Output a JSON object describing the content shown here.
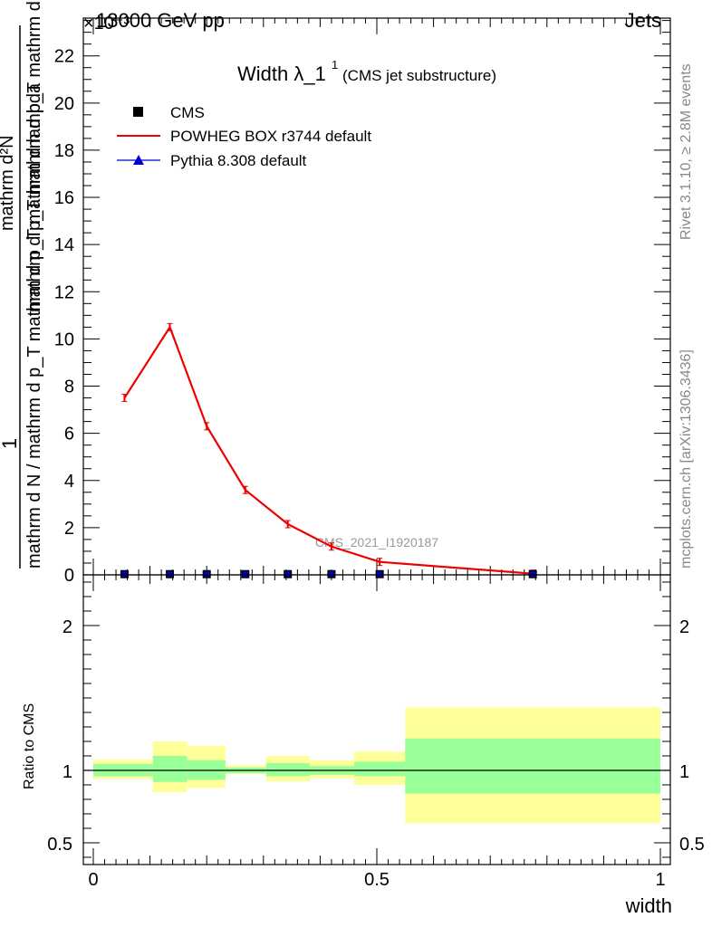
{
  "header": {
    "left": "13000 GeV pp",
    "right": "Jets",
    "exponent": "×10⁻³"
  },
  "side_labels": {
    "rivet": "Rivet 3.1.10, ≥ 2.8M events",
    "mcplots": "mcplots.cern.ch [arXiv:1306.3436]"
  },
  "chart_data": [
    {
      "type": "line",
      "title": "Width λ_1",
      "title_superscript": "1",
      "subtitle": "(CMS jet substructure)",
      "watermark": "CMS_2021_I1920187",
      "ylabel_numerator": "1",
      "ylabel_top": "mathrm d²N",
      "ylabel_middle": "mathrm d p_T mathrm d p_T mathrm d lambda",
      "ylabel_bottom": "mathrm d N / mathrm d p_T mathrm d p_T mathrm d lambda",
      "y_scale_note": "×10⁻³",
      "xlim": [
        0,
        1
      ],
      "ylim": [
        0,
        23.6
      ],
      "yticks": [
        0,
        2,
        4,
        6,
        8,
        10,
        12,
        14,
        16,
        18,
        20,
        22
      ],
      "ytick_labels": [
        "0",
        "2",
        "4",
        "6",
        "8",
        "10",
        "12",
        "14",
        "16",
        "18",
        "20",
        "22"
      ],
      "legend": {
        "placement": "top-left",
        "entries": [
          {
            "label": "CMS",
            "marker": "square",
            "color": "#000000"
          },
          {
            "label": "POWHEG BOX r3744 default",
            "marker": "line",
            "color": "#ee0000"
          },
          {
            "label": "Pythia 8.308 default",
            "marker": "triangle",
            "color": "#0000cc"
          }
        ]
      },
      "series": [
        {
          "name": "CMS",
          "x": [
            0.055,
            0.135,
            0.2,
            0.268,
            0.343,
            0.42,
            0.505,
            0.775
          ],
          "y": [
            0.03,
            0.03,
            0.03,
            0.03,
            0.03,
            0.03,
            0.03,
            0.03
          ]
        },
        {
          "name": "POWHEG BOX r3744 default",
          "x": [
            0.055,
            0.135,
            0.2,
            0.268,
            0.343,
            0.42,
            0.505,
            0.775
          ],
          "y": [
            7.5,
            10.5,
            6.3,
            3.6,
            2.15,
            1.2,
            0.55,
            0.05
          ]
        }
      ]
    },
    {
      "type": "area",
      "ylabel": "Ratio to CMS",
      "xlabel": "width",
      "xlim": [
        0,
        1
      ],
      "ylim": [
        0.35,
        2.35
      ],
      "yticks": [
        0.5,
        1,
        2
      ],
      "ytick_labels": [
        "0.5",
        "1",
        "2"
      ],
      "xticks": [
        0,
        0.5,
        1
      ],
      "xtick_labels": [
        "0",
        "0.5",
        "1"
      ],
      "reference_line": 1,
      "bands": [
        {
          "x0": 0.0,
          "x1": 0.105,
          "inner": [
            0.96,
            1.045
          ],
          "outer": [
            0.94,
            1.075
          ]
        },
        {
          "x0": 0.105,
          "x1": 0.165,
          "inner": [
            0.92,
            1.1
          ],
          "outer": [
            0.85,
            1.2
          ]
        },
        {
          "x0": 0.165,
          "x1": 0.233,
          "inner": [
            0.935,
            1.07
          ],
          "outer": [
            0.88,
            1.17
          ]
        },
        {
          "x0": 0.233,
          "x1": 0.305,
          "inner": [
            0.98,
            1.02
          ],
          "outer": [
            0.975,
            1.035
          ]
        },
        {
          "x0": 0.305,
          "x1": 0.382,
          "inner": [
            0.96,
            1.05
          ],
          "outer": [
            0.925,
            1.1
          ]
        },
        {
          "x0": 0.382,
          "x1": 0.46,
          "inner": [
            0.97,
            1.03
          ],
          "outer": [
            0.945,
            1.07
          ]
        },
        {
          "x0": 0.46,
          "x1": 0.55,
          "inner": [
            0.96,
            1.06
          ],
          "outer": [
            0.9,
            1.13
          ]
        },
        {
          "x0": 0.55,
          "x1": 1.0,
          "inner": [
            0.84,
            1.22
          ],
          "outer": [
            0.635,
            1.435
          ]
        }
      ],
      "band_colors": {
        "inner": "#99ff99",
        "outer": "#ffff99"
      }
    }
  ]
}
